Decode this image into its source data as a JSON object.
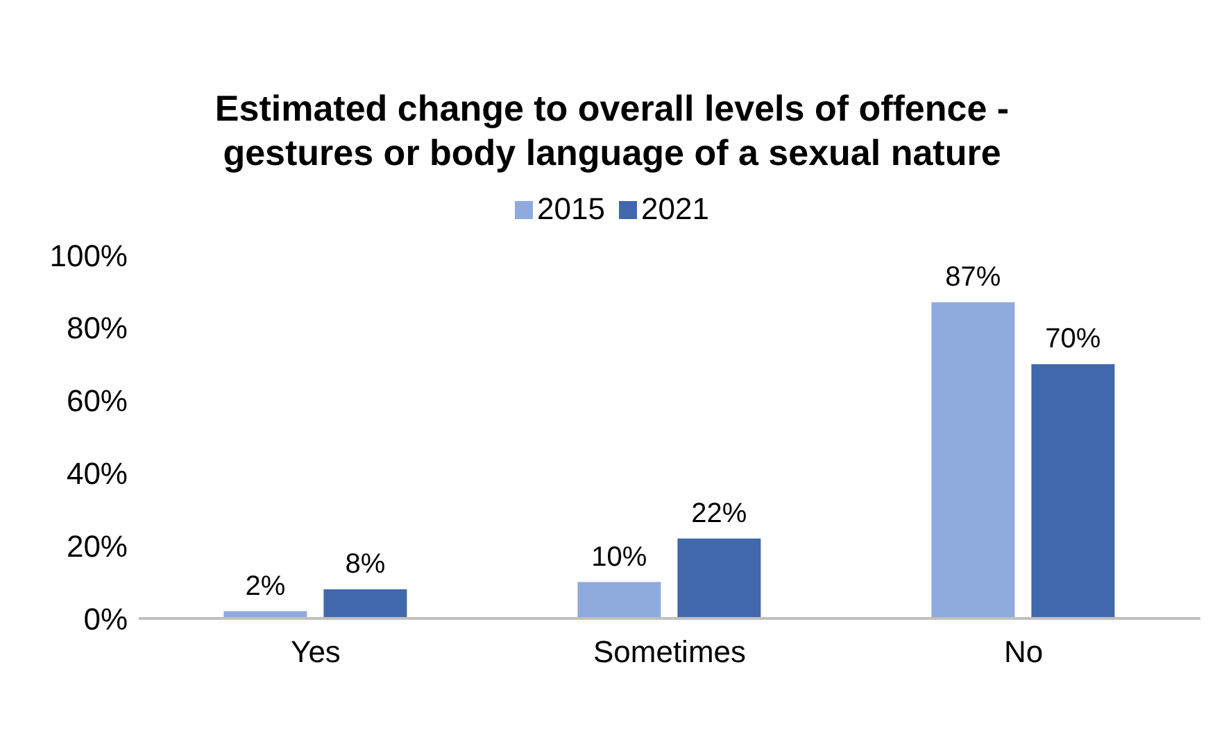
{
  "chart_data": {
    "type": "bar",
    "title": "Estimated change to overall levels of offence - gestures or body language of a sexual nature",
    "categories": [
      "Yes",
      "Sometimes",
      "No"
    ],
    "series": [
      {
        "name": "2015",
        "color": "#8faadc",
        "values": [
          2,
          10,
          87
        ],
        "value_labels": [
          "2%",
          "10%",
          "87%"
        ]
      },
      {
        "name": "2021",
        "color": "#4168ad",
        "values": [
          8,
          22,
          70
        ],
        "value_labels": [
          "8%",
          "22%",
          "70%"
        ]
      }
    ],
    "ylim": [
      0,
      100
    ],
    "yticks": [
      {
        "value": 0,
        "label": "0%"
      },
      {
        "value": 20,
        "label": "20%"
      },
      {
        "value": 40,
        "label": "40%"
      },
      {
        "value": 60,
        "label": "60%"
      },
      {
        "value": 80,
        "label": "80%"
      },
      {
        "value": 100,
        "label": "100%"
      }
    ],
    "grid": false,
    "legend": "top"
  }
}
